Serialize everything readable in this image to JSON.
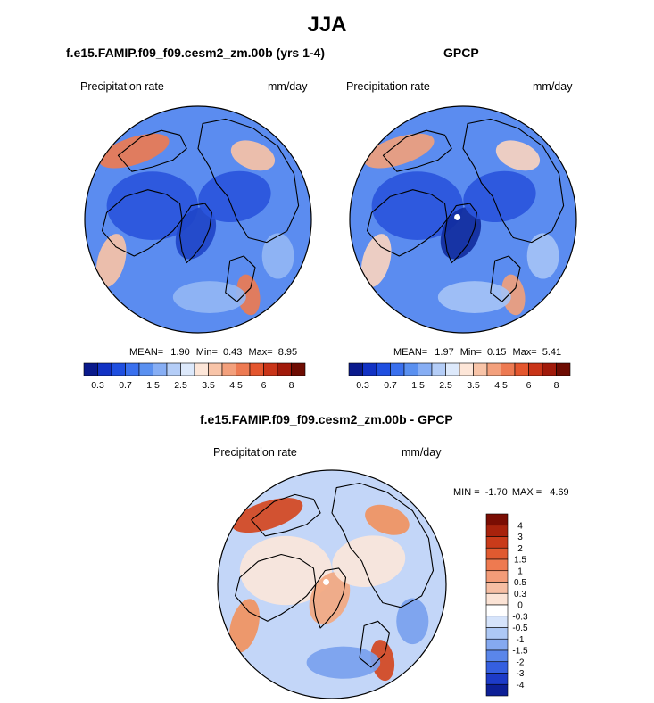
{
  "page": {
    "title": "JJA"
  },
  "chart_data": [
    {
      "type": "heatmap",
      "projection": "north-polar-stereographic",
      "title": "f.e15.FAMIP.f09_f09.cesm2_zm.00b (yrs 1-4)",
      "left_label": "Precipitation rate",
      "right_label": "mm/day",
      "stats": {
        "mean_label": "MEAN=",
        "mean": "1.90",
        "min_label": "Min=",
        "min": "0.43",
        "max_label": "Max=",
        "max": "8.95"
      },
      "colorbar": {
        "orientation": "horizontal",
        "tick_labels": [
          "0.3",
          "0.7",
          "1.5",
          "2.5",
          "3.5",
          "4.5",
          "6",
          "8"
        ],
        "colors": [
          "#0a1a8c",
          "#1232c4",
          "#1f4fe0",
          "#3a70ee",
          "#5a90f0",
          "#87aef4",
          "#b4cdf7",
          "#dde9fb",
          "#fde6d8",
          "#f8c4a8",
          "#f3a07c",
          "#ed7a52",
          "#e4562e",
          "#c93418",
          "#a11a0a",
          "#6e0c02"
        ]
      }
    },
    {
      "type": "heatmap",
      "projection": "north-polar-stereographic",
      "title": "GPCP",
      "left_label": "Precipitation rate",
      "right_label": "mm/day",
      "stats": {
        "mean_label": "MEAN=",
        "mean": "1.97",
        "min_label": "Min=",
        "min": "0.15",
        "max_label": "Max=",
        "max": "5.41"
      },
      "colorbar": {
        "orientation": "horizontal",
        "tick_labels": [
          "0.3",
          "0.7",
          "1.5",
          "2.5",
          "3.5",
          "4.5",
          "6",
          "8"
        ],
        "colors": [
          "#0a1a8c",
          "#1232c4",
          "#1f4fe0",
          "#3a70ee",
          "#5a90f0",
          "#87aef4",
          "#b4cdf7",
          "#dde9fb",
          "#fde6d8",
          "#f8c4a8",
          "#f3a07c",
          "#ed7a52",
          "#e4562e",
          "#c93418",
          "#a11a0a",
          "#6e0c02"
        ]
      }
    },
    {
      "type": "heatmap",
      "projection": "north-polar-stereographic",
      "title": "f.e15.FAMIP.f09_f09.cesm2_zm.00b - GPCP",
      "left_label": "Precipitation rate",
      "right_label": "mm/day",
      "stats": {
        "min_label": "MIN =",
        "min": "-1.70",
        "max_label": "MAX =",
        "max": "4.69"
      },
      "colorbar": {
        "orientation": "vertical",
        "tick_labels": [
          "4",
          "3",
          "2",
          "1.5",
          "1",
          "0.5",
          "0.3",
          "0",
          "-0.3",
          "-0.5",
          "-1",
          "-1.5",
          "-2",
          "-3",
          "-4"
        ],
        "colors": [
          "#7a0d03",
          "#a8220c",
          "#c93b1a",
          "#e05a30",
          "#ee7a50",
          "#f39c78",
          "#f6bea3",
          "#fbe3d5",
          "#ffffff",
          "#d6e4fb",
          "#adc8f5",
          "#85a9f0",
          "#5a86ea",
          "#355fe0",
          "#1d3bc8",
          "#0d1f96"
        ]
      }
    }
  ]
}
